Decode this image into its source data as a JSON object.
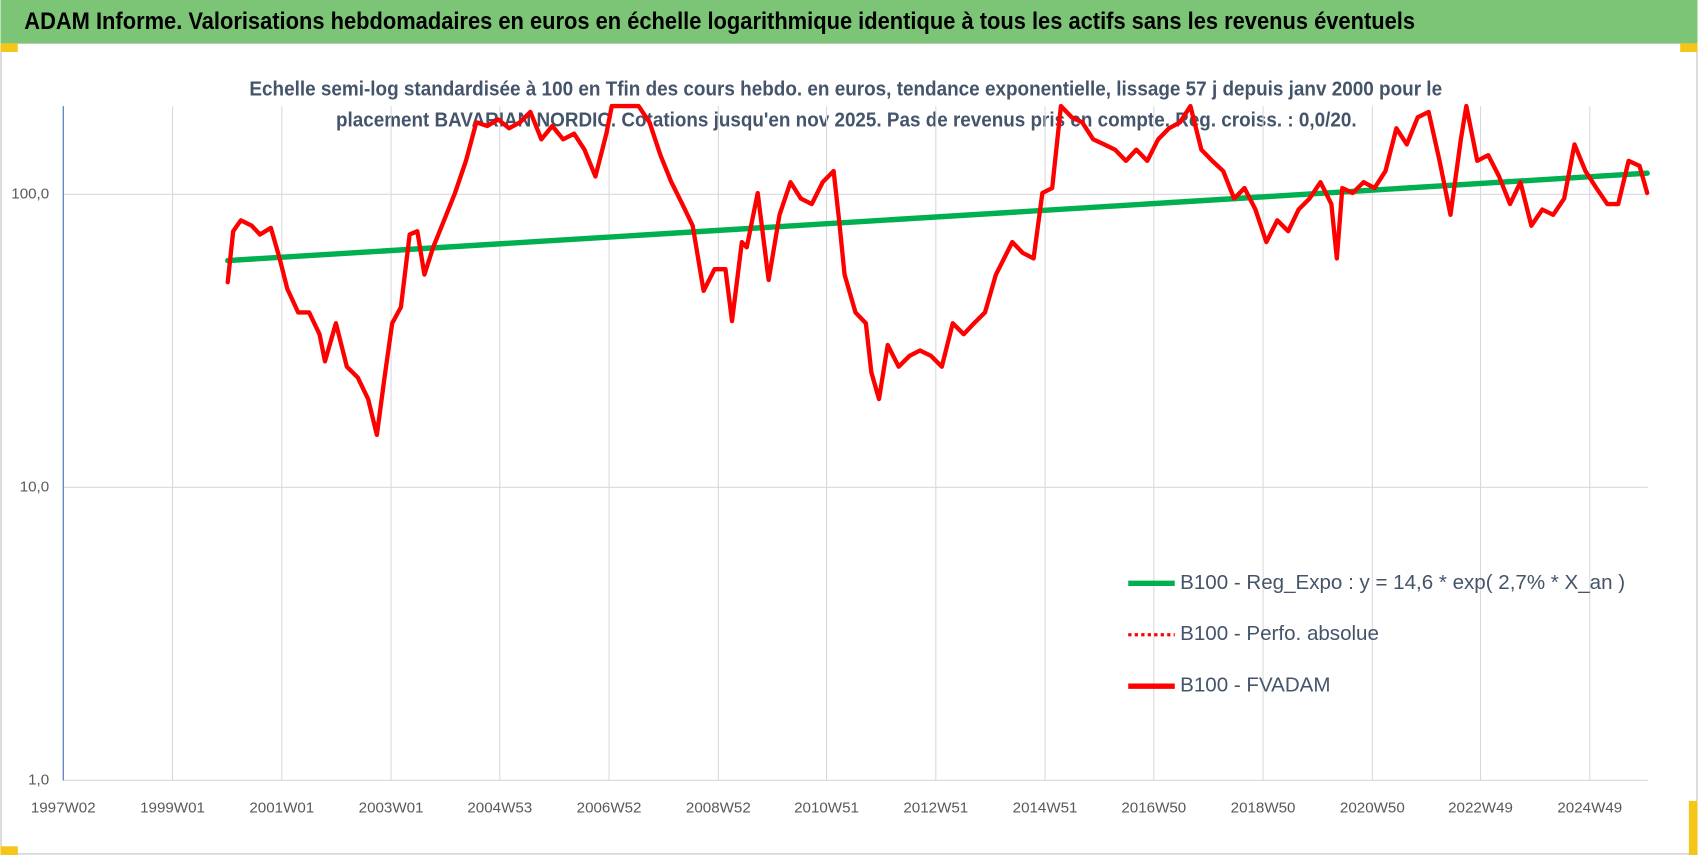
{
  "chart_data": {
    "type": "line",
    "title": "ADAM Informe. Valorisations hebdomadaires en euros en échelle logarithmique identique à tous les actifs sans les revenus éventuels",
    "subtitle": [
      "Echelle semi-log standardisée à 100 en Tfin des cours hebdo. en euros, tendance exponentielle, lissage 57 j depuis janv 2000 pour le",
      "placement BAVARIAN NORDIC. Cotations jusqu'en nov 2025. Pas de revenus pris en compte. Reg. croiss. : 0,0/20."
    ],
    "log_scale": true,
    "grid": true,
    "legend": "lower right",
    "xlim": [
      1997.0,
      2026.0
    ],
    "xticks": [
      {
        "value": 1997.0,
        "label": "1997W02"
      },
      {
        "value": 1999.0,
        "label": "1999W01"
      },
      {
        "value": 2001.0,
        "label": "2001W01"
      },
      {
        "value": 2003.0,
        "label": "2003W01"
      },
      {
        "value": 2004.99,
        "label": "2004W53"
      },
      {
        "value": 2006.99,
        "label": "2006W52"
      },
      {
        "value": 2008.99,
        "label": "2008W52"
      },
      {
        "value": 2010.97,
        "label": "2010W51"
      },
      {
        "value": 2012.97,
        "label": "2012W51"
      },
      {
        "value": 2014.97,
        "label": "2014W51"
      },
      {
        "value": 2016.96,
        "label": "2016W50"
      },
      {
        "value": 2018.96,
        "label": "2018W50"
      },
      {
        "value": 2020.96,
        "label": "2020W50"
      },
      {
        "value": 2022.94,
        "label": "2022W49"
      },
      {
        "value": 2024.94,
        "label": "2024W49"
      }
    ],
    "ylim": [
      1,
      200
    ],
    "yticks": [
      {
        "value": 1,
        "label": "1,0"
      },
      {
        "value": 10,
        "label": "10,0"
      },
      {
        "value": 100,
        "label": "100,0"
      }
    ],
    "series": [
      {
        "name": "B100 - Reg_Expo : y = 14,6 * exp( 2,7% *  X_an )",
        "color": "#00b050",
        "width": 5,
        "dashed": false,
        "x": [
          2000.01,
          2025.99
        ],
        "values": [
          59.4,
          118
        ]
      },
      {
        "name": "B100 - Perfo. absolue",
        "color": "#ff0000",
        "width": 3,
        "dashed": true,
        "x": [],
        "values": []
      },
      {
        "name": "B100 - FVADAM",
        "color": "#ff0000",
        "width": 4,
        "dashed": false,
        "x": [
          2000.01,
          2000.11,
          2000.25,
          2000.45,
          2000.6,
          2000.8,
          2000.96,
          2001.1,
          2001.3,
          2001.5,
          2001.69,
          2001.79,
          2001.99,
          2002.19,
          2002.39,
          2002.58,
          2002.74,
          2002.88,
          2003.02,
          2003.18,
          2003.34,
          2003.48,
          2003.61,
          2003.77,
          2003.97,
          2004.17,
          2004.37,
          2004.56,
          2004.76,
          2004.96,
          2005.16,
          2005.36,
          2005.55,
          2005.75,
          2005.95,
          2006.15,
          2006.35,
          2006.54,
          2006.74,
          2006.94,
          2007.04,
          2007.24,
          2007.53,
          2007.73,
          2007.93,
          2008.13,
          2008.33,
          2008.52,
          2008.72,
          2008.92,
          2009.12,
          2009.24,
          2009.42,
          2009.51,
          2009.71,
          2009.91,
          2010.11,
          2010.31,
          2010.5,
          2010.7,
          2010.9,
          2011.1,
          2011.2,
          2011.3,
          2011.5,
          2011.69,
          2011.79,
          2011.93,
          2012.09,
          2012.29,
          2012.49,
          2012.68,
          2012.88,
          2013.08,
          2013.28,
          2013.48,
          2013.67,
          2013.87,
          2014.07,
          2014.17,
          2014.37,
          2014.56,
          2014.76,
          2014.92,
          2015.1,
          2015.26,
          2015.46,
          2015.65,
          2015.85,
          2016.05,
          2016.25,
          2016.45,
          2016.64,
          2016.84,
          2017.04,
          2017.24,
          2017.44,
          2017.63,
          2017.83,
          2018.03,
          2018.23,
          2018.43,
          2018.62,
          2018.82,
          2019.02,
          2019.22,
          2019.42,
          2019.61,
          2019.81,
          2020.01,
          2020.21,
          2020.31,
          2020.41,
          2020.6,
          2020.8,
          2021.0,
          2021.2,
          2021.4,
          2021.59,
          2021.79,
          2021.99,
          2022.19,
          2022.39,
          2022.58,
          2022.68,
          2022.88,
          2023.08,
          2023.28,
          2023.48,
          2023.67,
          2023.87,
          2024.07,
          2024.27,
          2024.47,
          2024.66,
          2024.86,
          2025.06,
          2025.26,
          2025.46,
          2025.65,
          2025.85,
          2025.99
        ],
        "values": [
          50.1,
          74.8,
          81.5,
          78.1,
          72.9,
          76.8,
          60.4,
          47.6,
          39.5,
          39.5,
          33.3,
          26.9,
          36.3,
          25.8,
          23.7,
          20.0,
          15.1,
          23.7,
          36.3,
          41.2,
          72.9,
          74.8,
          53.2,
          65.9,
          81.5,
          101,
          130,
          176,
          171,
          180,
          168,
          176,
          191,
          154,
          171,
          154,
          161,
          142,
          115,
          161,
          200,
          200,
          200,
          176,
          136,
          110,
          92.6,
          78.1,
          46.8,
          55.5,
          55.5,
          36.9,
          68.7,
          65.9,
          101,
          51.0,
          85.1,
          110,
          96.7,
          92.6,
          110,
          120,
          81.5,
          53.2,
          39.5,
          36.3,
          24.7,
          20.0,
          30.6,
          25.8,
          28.1,
          29.3,
          28.1,
          25.8,
          36.3,
          33.3,
          36.3,
          39.5,
          53.2,
          57.9,
          68.7,
          63.1,
          60.4,
          101,
          105,
          200,
          183,
          176,
          154,
          148,
          142,
          130,
          142,
          130,
          154,
          168,
          176,
          200,
          142,
          130,
          120,
          96.7,
          105,
          88.7,
          68.7,
          81.5,
          74.8,
          88.7,
          96.7,
          110,
          92.6,
          60.4,
          105,
          101,
          110,
          105,
          120,
          168,
          148,
          183,
          191,
          130,
          85.1,
          154,
          200,
          130,
          136,
          115,
          92.6,
          110,
          78.1,
          88.7,
          85.1,
          96.7,
          148,
          120,
          105,
          92.6,
          92.6,
          130,
          125,
          101
        ]
      }
    ]
  }
}
